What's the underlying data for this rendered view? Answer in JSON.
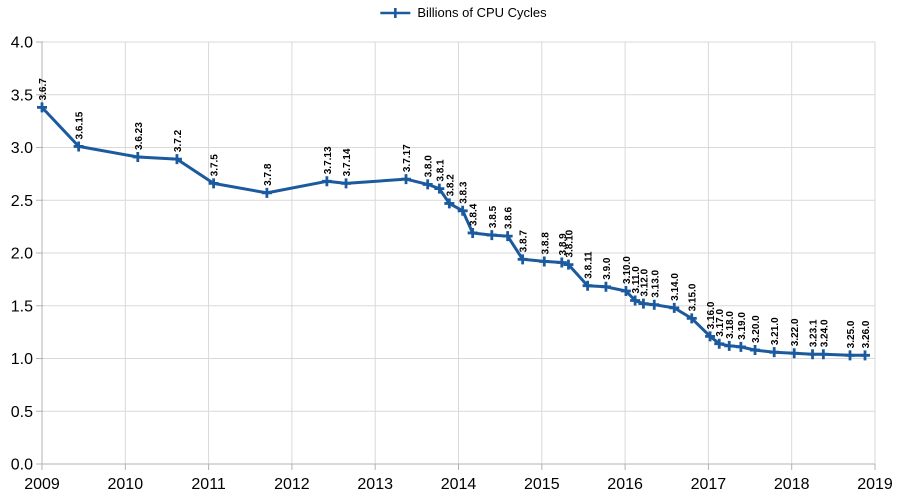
{
  "legend": {
    "position": "top-center"
  },
  "chart_data": {
    "type": "line",
    "title": "",
    "xlabel": "",
    "ylabel": "",
    "xlim": [
      2009,
      2019
    ],
    "ylim": [
      0.0,
      4.0
    ],
    "x_ticks": [
      2009,
      2010,
      2011,
      2012,
      2013,
      2014,
      2015,
      2016,
      2017,
      2018,
      2019
    ],
    "y_ticks": [
      "0.0",
      "0.5",
      "1.0",
      "1.5",
      "2.0",
      "2.5",
      "3.0",
      "3.5",
      "4.0"
    ],
    "grid": true,
    "legend_position": "top-center",
    "colors": {
      "line": "#1b5a9e",
      "grid": "#d9d9d9",
      "axis": "#b3b3b3",
      "tick_label": "#000000",
      "data_label": "#000000",
      "background": "#ffffff"
    },
    "series": [
      {
        "name": "Billions of CPU Cycles",
        "marker": "plus",
        "color": "#1b5a9e",
        "points": [
          {
            "label": "3.6.7",
            "x": 2009.0,
            "y": 3.38
          },
          {
            "label": "3.6.15",
            "x": 2009.44,
            "y": 3.01
          },
          {
            "label": "3.6.23",
            "x": 2010.15,
            "y": 2.91
          },
          {
            "label": "3.7.2",
            "x": 2010.62,
            "y": 2.89
          },
          {
            "label": "3.7.5",
            "x": 2011.06,
            "y": 2.66
          },
          {
            "label": "3.7.8",
            "x": 2011.7,
            "y": 2.57
          },
          {
            "label": "3.7.13",
            "x": 2012.42,
            "y": 2.68
          },
          {
            "label": "3.7.14",
            "x": 2012.65,
            "y": 2.66
          },
          {
            "label": "3.7.17",
            "x": 2013.37,
            "y": 2.7
          },
          {
            "label": "3.8.0",
            "x": 2013.63,
            "y": 2.65
          },
          {
            "label": "3.8.1",
            "x": 2013.77,
            "y": 2.61
          },
          {
            "label": "3.8.2",
            "x": 2013.89,
            "y": 2.47
          },
          {
            "label": "3.8.3",
            "x": 2014.05,
            "y": 2.4
          },
          {
            "label": "3.8.4",
            "x": 2014.17,
            "y": 2.19
          },
          {
            "label": "3.8.5",
            "x": 2014.4,
            "y": 2.17
          },
          {
            "label": "3.8.6",
            "x": 2014.59,
            "y": 2.16
          },
          {
            "label": "3.8.7",
            "x": 2014.77,
            "y": 1.94
          },
          {
            "label": "3.8.8",
            "x": 2015.03,
            "y": 1.92
          },
          {
            "label": "3.8.9",
            "x": 2015.24,
            "y": 1.91
          },
          {
            "label": "3.8.10",
            "x": 2015.32,
            "y": 1.89
          },
          {
            "label": "3.8.11",
            "x": 2015.55,
            "y": 1.69
          },
          {
            "label": "3.9.0",
            "x": 2015.77,
            "y": 1.68
          },
          {
            "label": "3.10.0",
            "x": 2016.01,
            "y": 1.64
          },
          {
            "label": "3.11.0",
            "x": 2016.12,
            "y": 1.55
          },
          {
            "label": "3.12.0",
            "x": 2016.22,
            "y": 1.52
          },
          {
            "label": "3.13.0",
            "x": 2016.35,
            "y": 1.51
          },
          {
            "label": "3.14.0",
            "x": 2016.59,
            "y": 1.48
          },
          {
            "label": "3.15.0",
            "x": 2016.8,
            "y": 1.38
          },
          {
            "label": "3.16.0",
            "x": 2017.02,
            "y": 1.21
          },
          {
            "label": "3.17.0",
            "x": 2017.13,
            "y": 1.14
          },
          {
            "label": "3.18.0",
            "x": 2017.25,
            "y": 1.12
          },
          {
            "label": "3.19.0",
            "x": 2017.39,
            "y": 1.11
          },
          {
            "label": "3.20.0",
            "x": 2017.56,
            "y": 1.08
          },
          {
            "label": "3.21.0",
            "x": 2017.79,
            "y": 1.06
          },
          {
            "label": "3.22.0",
            "x": 2018.03,
            "y": 1.05
          },
          {
            "label": "3.23.1",
            "x": 2018.25,
            "y": 1.04
          },
          {
            "label": "3.24.0",
            "x": 2018.38,
            "y": 1.04
          },
          {
            "label": "3.25.0",
            "x": 2018.7,
            "y": 1.03
          },
          {
            "label": "3.26.0",
            "x": 2018.88,
            "y": 1.03
          }
        ]
      }
    ]
  }
}
